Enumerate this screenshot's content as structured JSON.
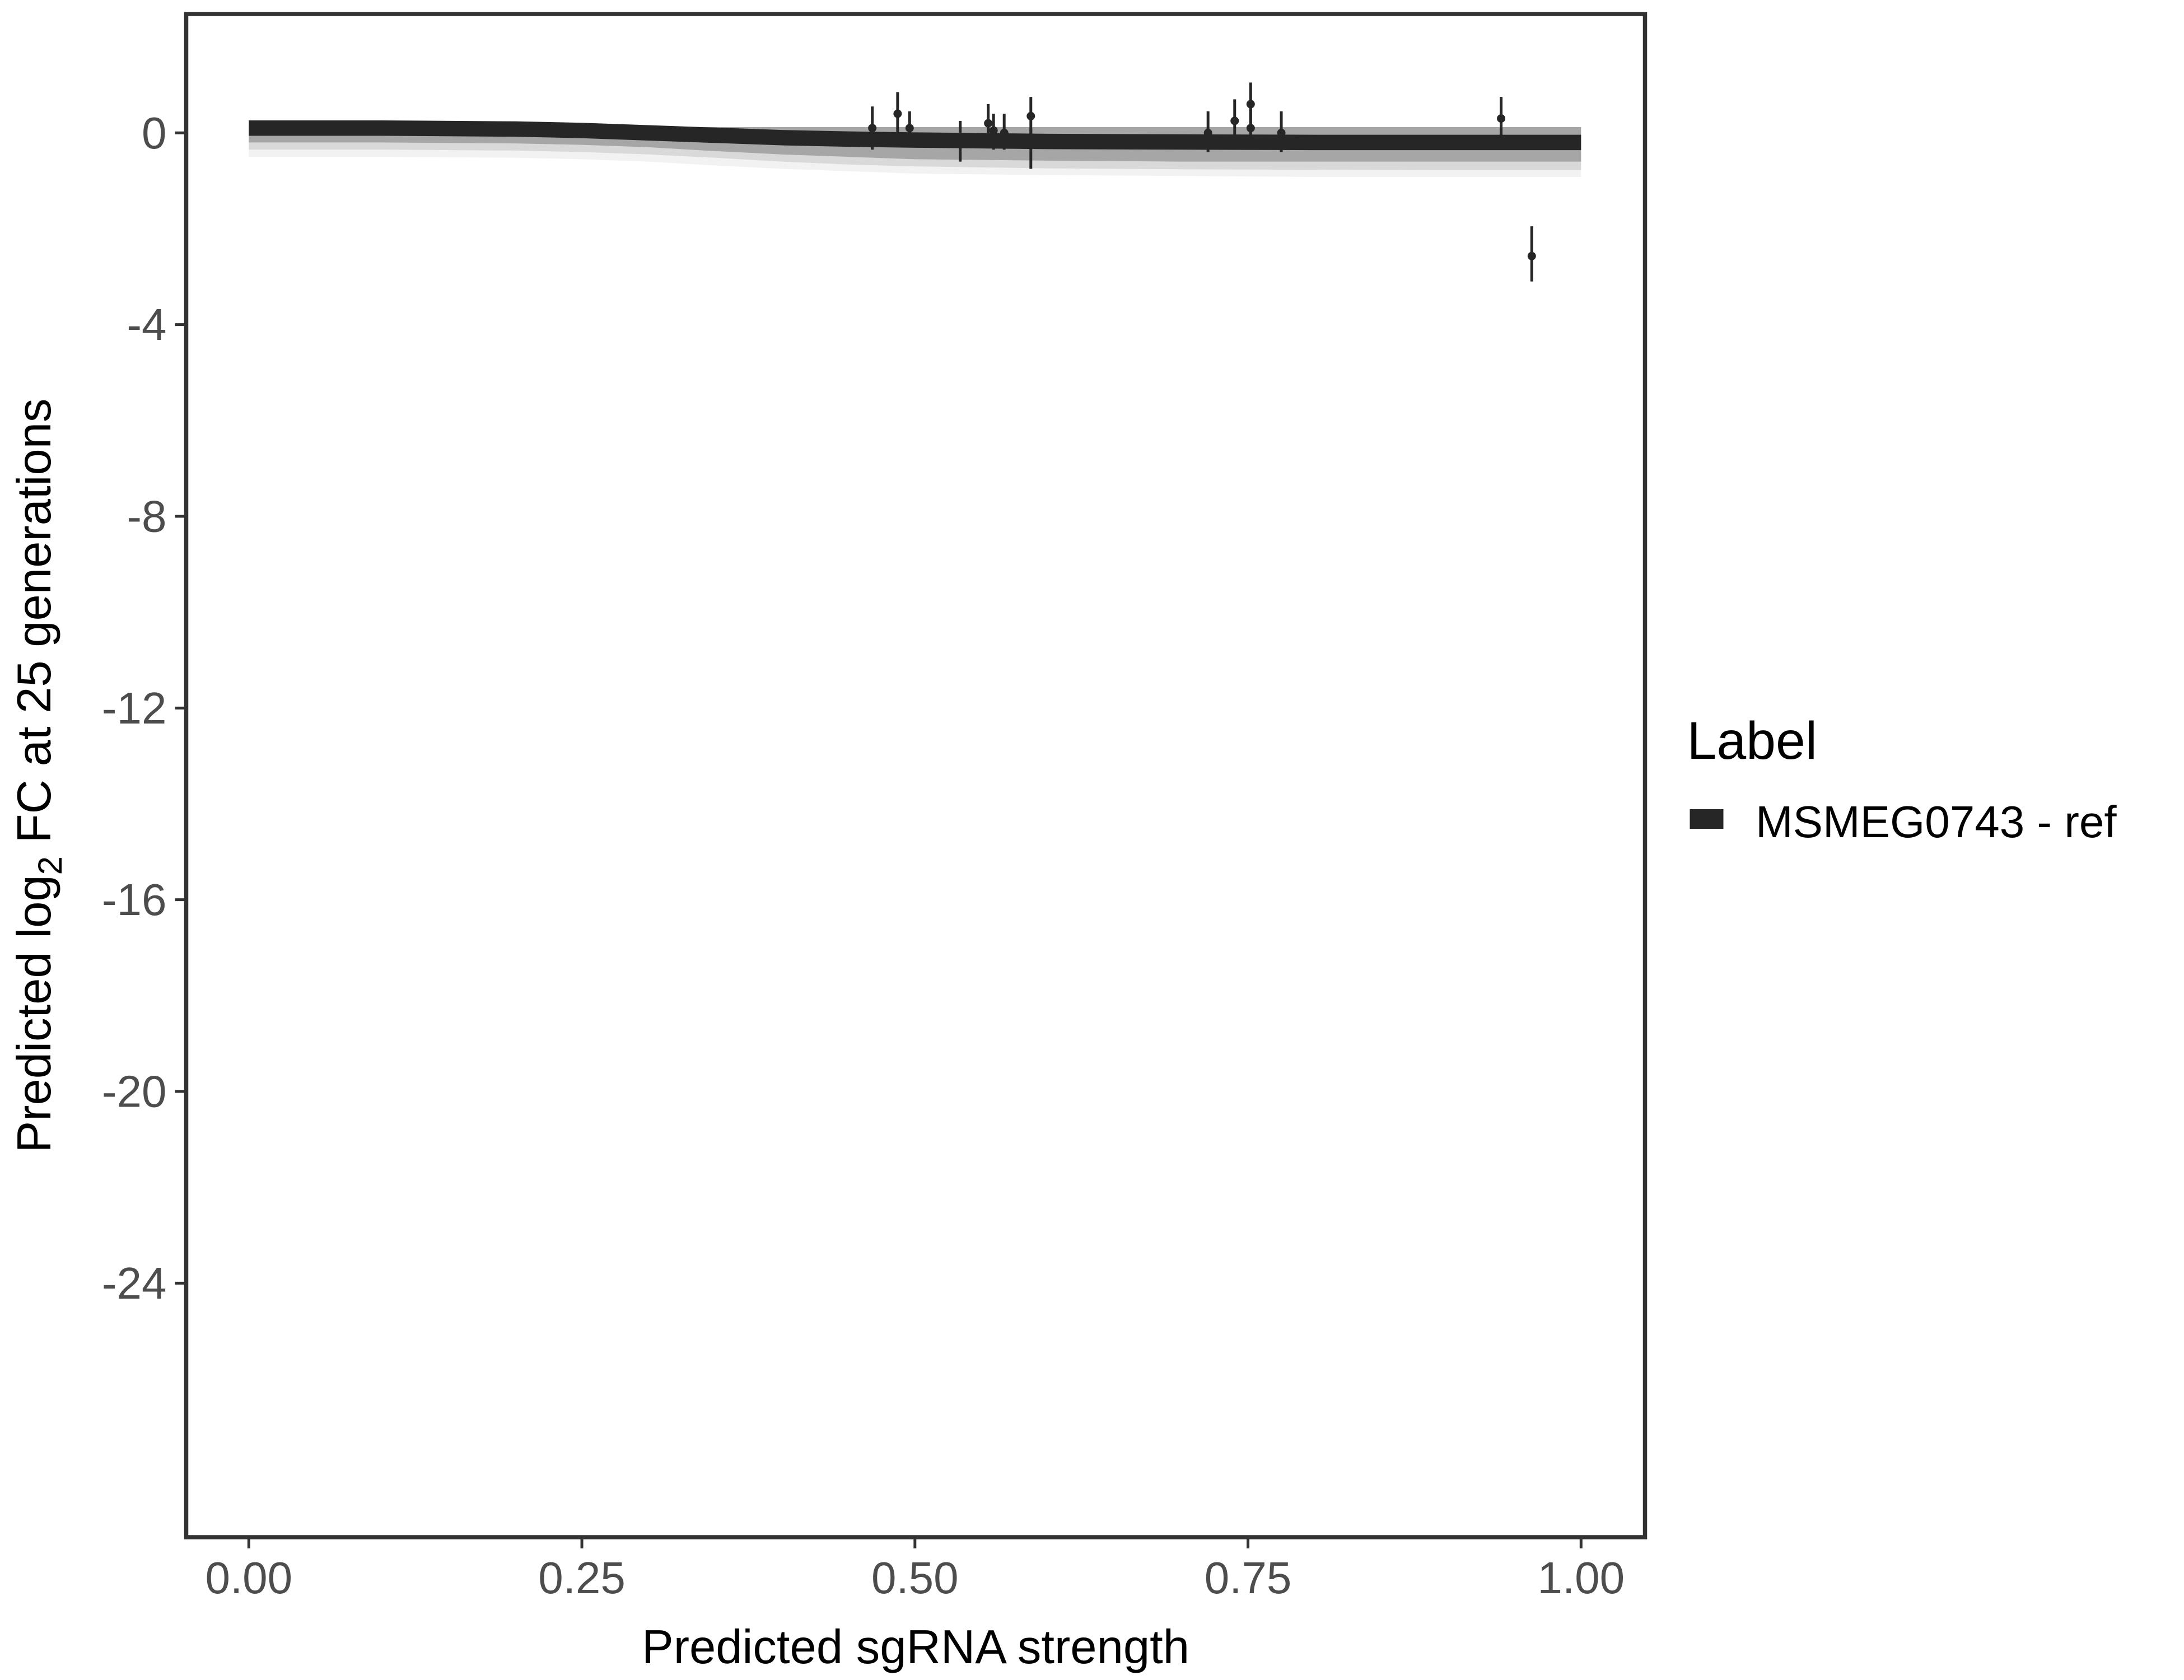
{
  "chart_data": {
    "type": "line",
    "title": "",
    "xlabel": "Predicted sgRNA strength",
    "ylabel_parts": {
      "before": "Predicted  log",
      "sub": "2",
      "after": " FC at 25 generations"
    },
    "xlim": [
      -0.047,
      1.048
    ],
    "ylim": [
      -29.3,
      2.48
    ],
    "x_ticks": [
      0.0,
      0.25,
      0.5,
      0.75,
      1.0
    ],
    "x_tick_labels": [
      "0.00",
      "0.25",
      "0.50",
      "0.75",
      "1.00"
    ],
    "y_ticks": [
      0,
      -4,
      -8,
      -12,
      -16,
      -20,
      -24
    ],
    "y_tick_labels": [
      "0",
      "-4",
      "-8",
      "-12",
      "-16",
      "-20",
      "-24"
    ],
    "grid": false,
    "legend": {
      "title": "Label",
      "placement": "right",
      "entries": [
        {
          "name": "MSMEG0743 - ref",
          "color": "#262626"
        }
      ]
    },
    "fit_line": {
      "name": "MSMEG0743 - ref",
      "color": "#262626",
      "x": [
        0.0,
        0.1,
        0.2,
        0.25,
        0.3,
        0.35,
        0.4,
        0.45,
        0.5,
        0.6,
        0.7,
        0.8,
        0.9,
        1.0
      ],
      "y": [
        0.1,
        0.1,
        0.08,
        0.05,
        0.0,
        -0.05,
        -0.1,
        -0.13,
        -0.15,
        -0.18,
        -0.19,
        -0.2,
        -0.2,
        -0.2
      ]
    },
    "ribbons": [
      {
        "color": "#a6a6a6",
        "upper": [
          0.15,
          0.15,
          0.14,
          0.13,
          0.12,
          0.12,
          0.12,
          0.12,
          0.12,
          0.12,
          0.12,
          0.12,
          0.12,
          0.12
        ],
        "lower": [
          -0.2,
          -0.2,
          -0.22,
          -0.25,
          -0.3,
          -0.38,
          -0.45,
          -0.5,
          -0.55,
          -0.58,
          -0.6,
          -0.6,
          -0.6,
          -0.6
        ]
      },
      {
        "color": "#d9d9d9",
        "upper": [
          0.0,
          0.0,
          -0.02,
          -0.05,
          -0.1,
          -0.15,
          -0.2,
          -0.25,
          -0.3,
          -0.35,
          -0.38,
          -0.4,
          -0.4,
          -0.4
        ],
        "lower": [
          -0.35,
          -0.35,
          -0.37,
          -0.4,
          -0.45,
          -0.52,
          -0.6,
          -0.66,
          -0.7,
          -0.74,
          -0.76,
          -0.77,
          -0.78,
          -0.78
        ]
      },
      {
        "color": "#f2f2f2",
        "upper": [
          -0.3,
          -0.3,
          -0.32,
          -0.35,
          -0.4,
          -0.47,
          -0.55,
          -0.6,
          -0.65,
          -0.68,
          -0.7,
          -0.72,
          -0.72,
          -0.72
        ],
        "lower": [
          -0.5,
          -0.5,
          -0.52,
          -0.55,
          -0.6,
          -0.68,
          -0.75,
          -0.8,
          -0.85,
          -0.88,
          -0.9,
          -0.92,
          -0.92,
          -0.92
        ]
      }
    ],
    "points": [
      {
        "x": 0.468,
        "y": 0.1,
        "ymin": -0.35,
        "ymax": 0.55
      },
      {
        "x": 0.487,
        "y": 0.4,
        "ymin": -0.15,
        "ymax": 0.85
      },
      {
        "x": 0.496,
        "y": 0.1,
        "ymin": -0.3,
        "ymax": 0.45
      },
      {
        "x": 0.534,
        "y": -0.2,
        "ymin": -0.6,
        "ymax": 0.25
      },
      {
        "x": 0.555,
        "y": 0.2,
        "ymin": -0.15,
        "ymax": 0.6
      },
      {
        "x": 0.559,
        "y": 0.05,
        "ymin": -0.35,
        "ymax": 0.4
      },
      {
        "x": 0.567,
        "y": 0.0,
        "ymin": -0.35,
        "ymax": 0.4
      },
      {
        "x": 0.587,
        "y": 0.35,
        "ymin": -0.1,
        "ymax": 0.75
      },
      {
        "x": 0.587,
        "y": -0.2,
        "ymin": -0.75,
        "ymax": 0.1
      },
      {
        "x": 0.72,
        "y": 0.0,
        "ymin": -0.4,
        "ymax": 0.45
      },
      {
        "x": 0.74,
        "y": 0.25,
        "ymin": -0.1,
        "ymax": 0.7
      },
      {
        "x": 0.752,
        "y": 0.6,
        "ymin": 0.1,
        "ymax": 1.05
      },
      {
        "x": 0.752,
        "y": 0.1,
        "ymin": -0.3,
        "ymax": 0.6
      },
      {
        "x": 0.775,
        "y": 0.0,
        "ymin": -0.4,
        "ymax": 0.45
      },
      {
        "x": 0.94,
        "y": 0.3,
        "ymin": -0.1,
        "ymax": 0.75
      },
      {
        "x": 0.963,
        "y": -2.57,
        "ymin": -3.1,
        "ymax": -1.95
      }
    ]
  }
}
